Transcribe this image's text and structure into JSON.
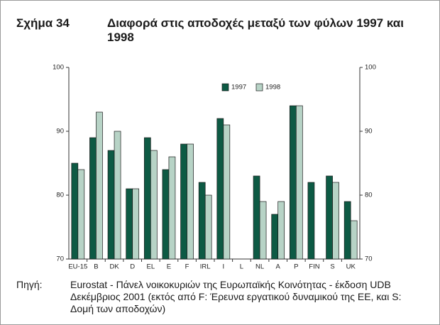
{
  "chart_data": {
    "type": "bar",
    "figure_label": "Σχήμα 34",
    "title": "Διαφορά στις αποδοχές μεταξύ των φύλων 1997 και 1998",
    "categories": [
      "EU-15",
      "B",
      "DK",
      "D",
      "EL",
      "E",
      "F",
      "IRL",
      "I",
      "L",
      "NL",
      "A",
      "P",
      "FIN",
      "S",
      "UK"
    ],
    "series": [
      {
        "name": "1997",
        "color": "#0d5a44",
        "values": [
          85,
          89,
          87,
          81,
          89,
          84,
          88,
          82,
          92,
          null,
          83,
          77,
          94,
          82,
          83,
          79
        ]
      },
      {
        "name": "1998",
        "color": "#b7d3c6",
        "values": [
          84,
          93,
          90,
          81,
          87,
          86,
          88,
          80,
          91,
          null,
          79,
          79,
          94,
          null,
          82,
          76
        ]
      }
    ],
    "ylim": [
      70,
      100
    ],
    "yticks": [
      70,
      80,
      90,
      100
    ],
    "y2lim": [
      70,
      100
    ],
    "y2ticks": [
      70,
      80,
      90,
      100
    ],
    "legend": "top",
    "source_label": "Πηγή:",
    "source": "Eurostat - Πάνελ νοικοκυριών της Ευρωπαϊκής Κοινότητας - έκδοση UDB Δεκέμβριος 2001 (εκτός από F: Έρευνα εργατικού δυναμικού της ΕΕ, και S: Δομή των αποδοχών)"
  }
}
